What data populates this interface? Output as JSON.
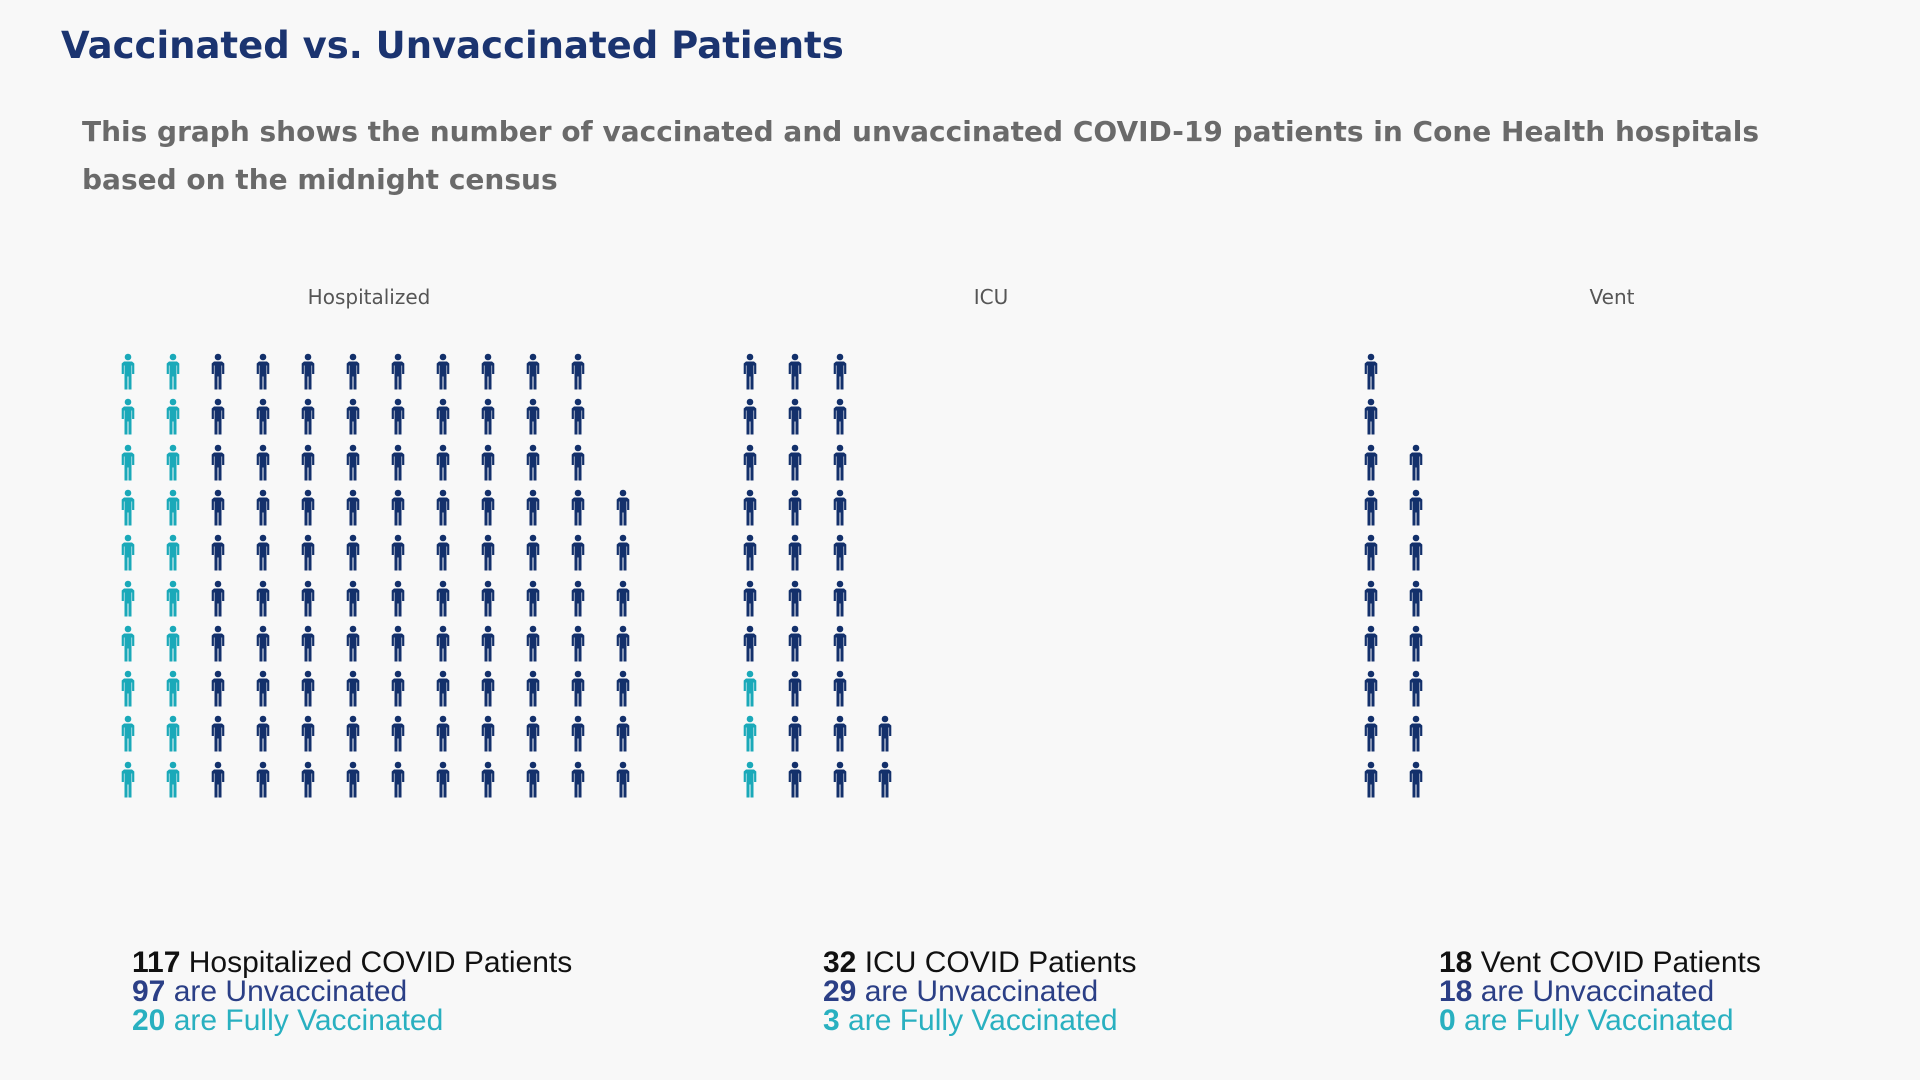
{
  "title": "Vaccinated vs. Unvaccinated Patients",
  "subtitle": "This graph shows the number of vaccinated and unvaccinated COVID-19 patients in Cone Health hospitals based on the midnight census",
  "colors": {
    "vaccinated": "#1aa9b9",
    "unvaccinated": "#13306b"
  },
  "chart_data": {
    "type": "pictogram",
    "icon": "person-icon",
    "icons_per_column": 10,
    "panels": [
      {
        "label": "Hospitalized",
        "total": 117,
        "unvaccinated": 97,
        "vaccinated": 20
      },
      {
        "label": "ICU",
        "total": 32,
        "unvaccinated": 29,
        "vaccinated": 3
      },
      {
        "label": "Vent",
        "total": 18,
        "unvaccinated": 18,
        "vaccinated": 0
      }
    ]
  },
  "summaries": [
    {
      "total": "117",
      "total_text": "Hospitalized COVID Patients",
      "unvax": "97",
      "unvax_text": "are Unvaccinated",
      "vax": "20",
      "vax_text": "are Fully Vaccinated"
    },
    {
      "total": "32",
      "total_text": "ICU COVID Patients",
      "unvax": "29",
      "unvax_text": "are Unvaccinated",
      "vax": "3",
      "vax_text": "are Fully Vaccinated"
    },
    {
      "total": "18",
      "total_text": "Vent COVID Patients",
      "unvax": "18",
      "unvax_text": "are Unvaccinated",
      "vax": "0",
      "vax_text": "are Fully Vaccinated"
    }
  ]
}
